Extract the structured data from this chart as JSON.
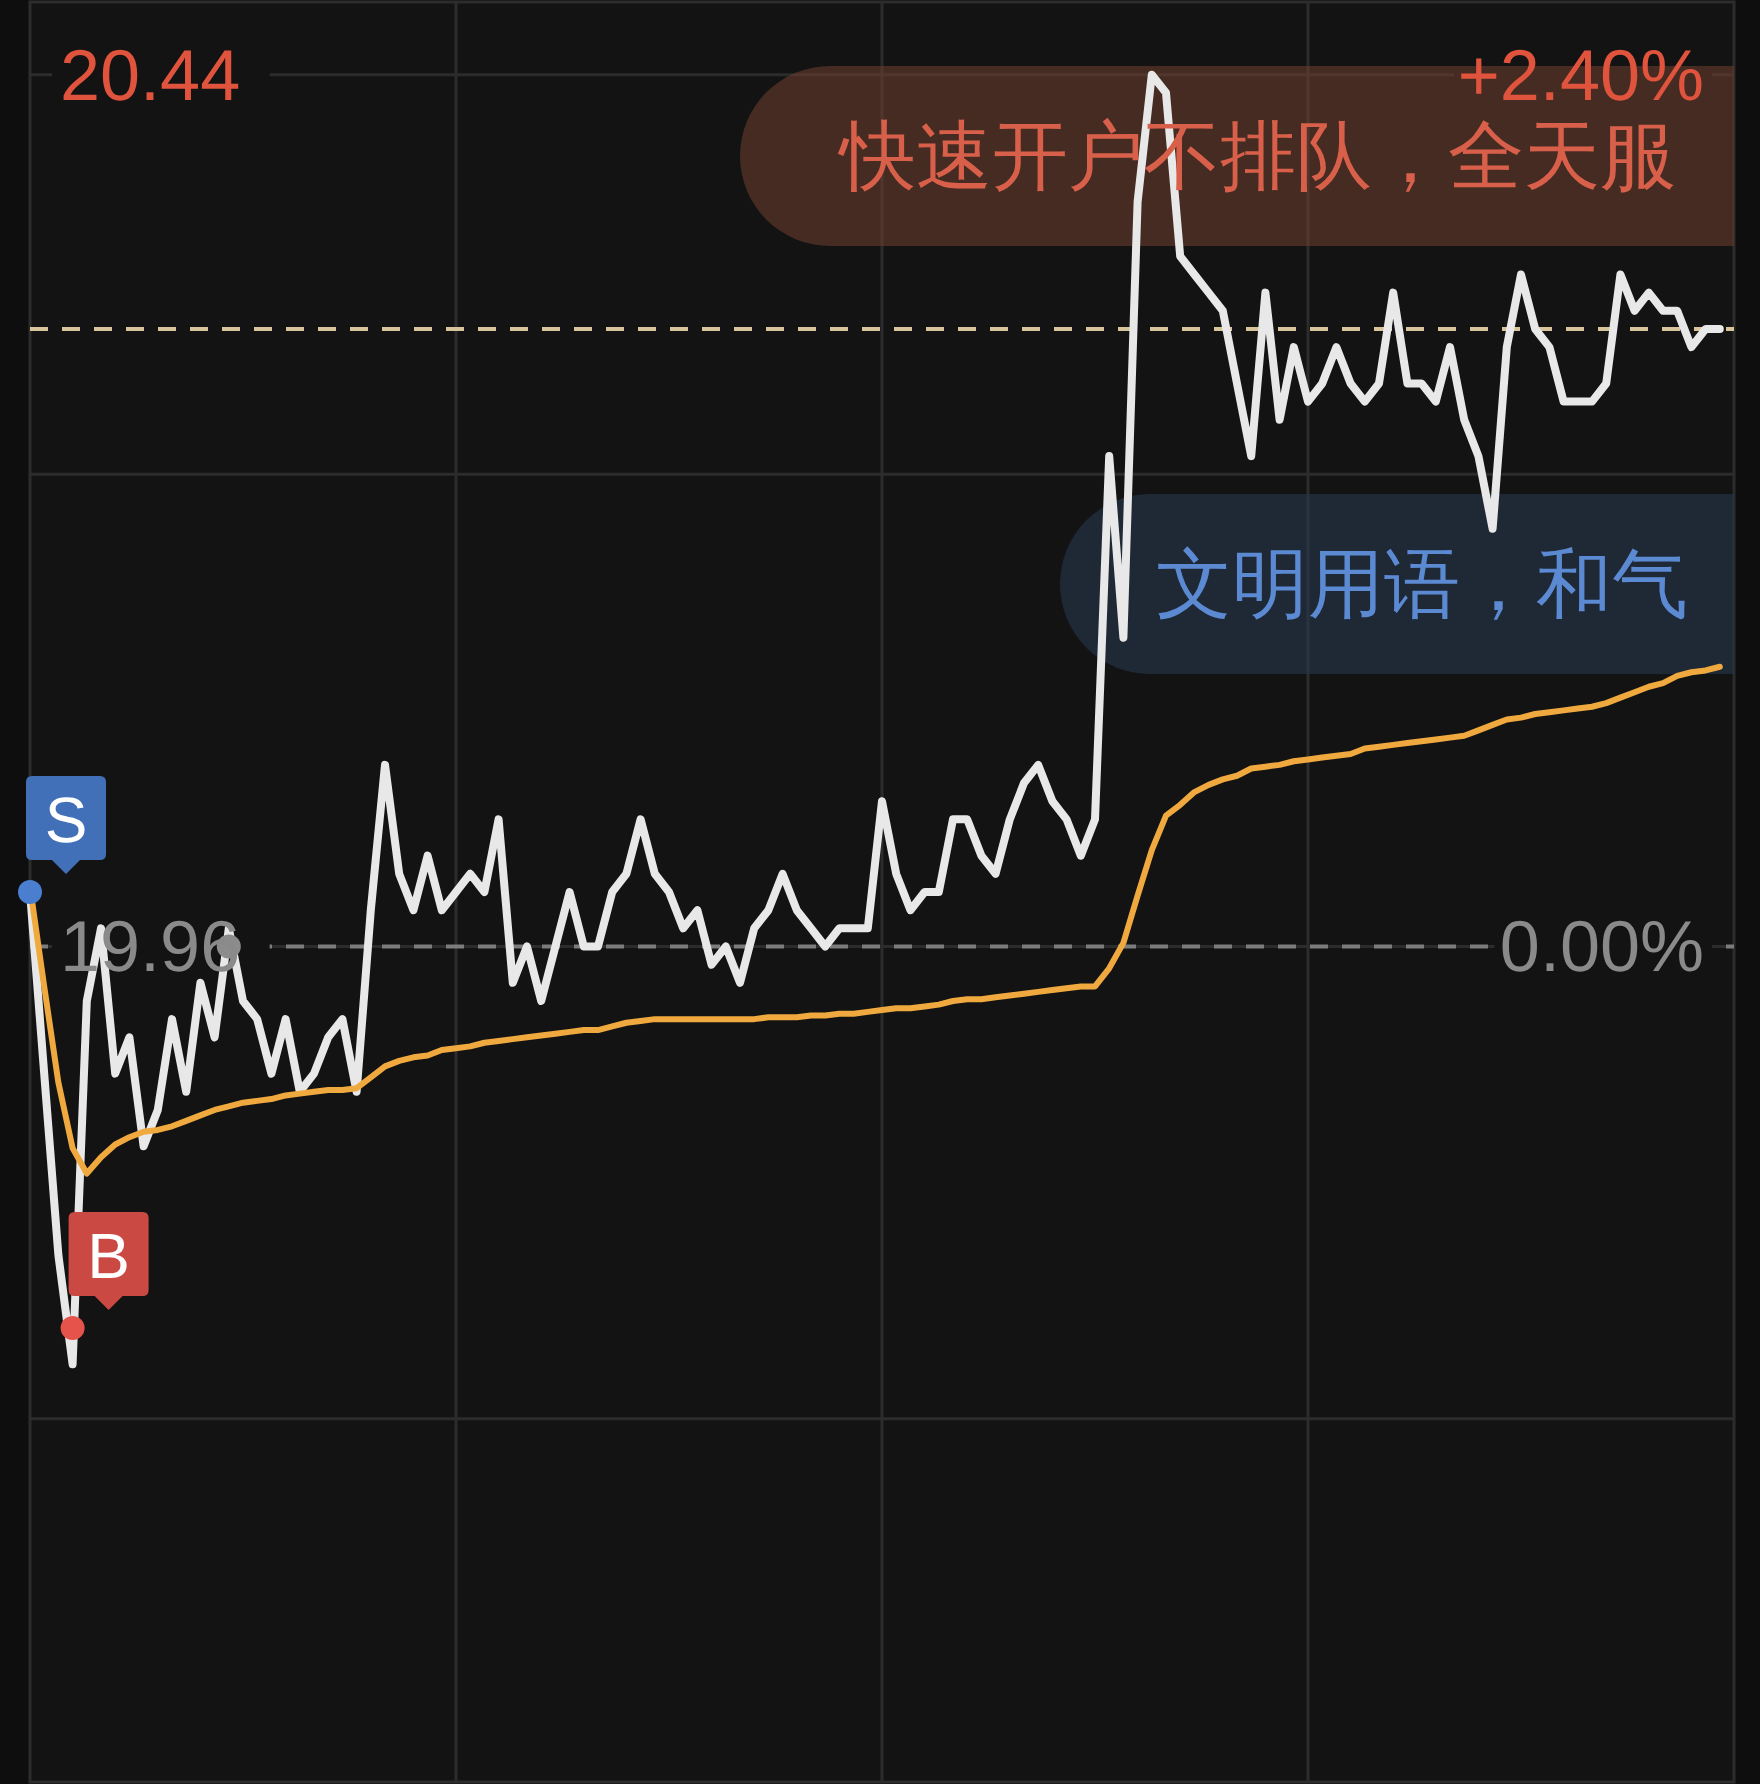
{
  "chart_data": {
    "type": "line",
    "categories": [
      null,
      null,
      null,
      null,
      null,
      null,
      null,
      null,
      null,
      null,
      null,
      null,
      null,
      null,
      null,
      null,
      null,
      null,
      null,
      null,
      null,
      null,
      null,
      null,
      null,
      null,
      null,
      null,
      null,
      null,
      null,
      null,
      null,
      null,
      null,
      null,
      null,
      null,
      null,
      null,
      null,
      null,
      null,
      null,
      null,
      null,
      null,
      null,
      null,
      null,
      null,
      null,
      null,
      null,
      null,
      null,
      null,
      null,
      null,
      null,
      null,
      null,
      null,
      null,
      null,
      null,
      null,
      null,
      null,
      null,
      null,
      null,
      null,
      null,
      null,
      null,
      null,
      null,
      null,
      null,
      null,
      null,
      null,
      null,
      null,
      null,
      null,
      null,
      null,
      null,
      null,
      null,
      null,
      null,
      null,
      null,
      null,
      null,
      null,
      null,
      null,
      null,
      null,
      null,
      null,
      null,
      null,
      null,
      null,
      null,
      null,
      null,
      null,
      null,
      null,
      null,
      null,
      null,
      null,
      null
    ],
    "ylim": [
      19.5,
      20.48
    ],
    "yticks": [
      20.44,
      {
        "value": 20.22,
        "label": null
      },
      19.96,
      {
        "value": 19.7,
        "label": null
      }
    ],
    "y2lim": [
      -2.3,
      2.6
    ],
    "y2ticks": [
      {
        "value": 2.4,
        "label": "+2.40%"
      },
      {
        "value": 0,
        "label": "0.00%"
      }
    ],
    "grid": true,
    "ref_lines": [
      {
        "axis": "y",
        "value": 19.96,
        "color": "#7c7c7c",
        "line_style": "dashed"
      },
      {
        "axis": "y",
        "value": 20.3,
        "color": "#d8c49a",
        "line_style": "dashed"
      }
    ],
    "series": [
      {
        "color": "#e8e8e8",
        "values": [
          19.99,
          19.89,
          19.79,
          19.73,
          19.93,
          19.97,
          19.89,
          19.91,
          19.85,
          19.87,
          19.92,
          19.88,
          19.94,
          19.91,
          19.97,
          19.93,
          19.92,
          19.89,
          19.92,
          19.88,
          19.89,
          19.91,
          19.92,
          19.88,
          19.98,
          20.06,
          20.0,
          19.98,
          20.01,
          19.98,
          19.99,
          20.0,
          19.99,
          20.03,
          19.94,
          19.96,
          19.93,
          19.96,
          19.99,
          19.96,
          19.96,
          19.99,
          20.0,
          20.03,
          20.0,
          19.99,
          19.97,
          19.98,
          19.95,
          19.96,
          19.94,
          19.97,
          19.98,
          20.0,
          19.98,
          19.97,
          19.96,
          19.97,
          19.97,
          19.97,
          20.04,
          20.0,
          19.98,
          19.99,
          19.99,
          20.03,
          20.03,
          20.01,
          20.0,
          20.03,
          20.05,
          20.06,
          20.04,
          20.03,
          20.01,
          20.03,
          20.23,
          20.13,
          20.37,
          20.44,
          20.43,
          20.34,
          20.33,
          20.32,
          20.31,
          20.27,
          20.23,
          20.32,
          20.25,
          20.29,
          20.26,
          20.27,
          20.29,
          20.27,
          20.26,
          20.27,
          20.32,
          20.27,
          20.27,
          20.26,
          20.29,
          20.25,
          20.23,
          20.19,
          20.29,
          20.33,
          20.3,
          20.29,
          20.26,
          20.26,
          20.26,
          20.27,
          20.33,
          20.31,
          20.32,
          20.31,
          20.31,
          20.29,
          20.3,
          20.3
        ]
      },
      {
        "color": "#f0a93e",
        "values": [
          19.993,
          19.938,
          19.885,
          19.849,
          19.835,
          19.844,
          19.851,
          19.855,
          19.858,
          19.859,
          19.861,
          19.864,
          19.867,
          19.87,
          19.872,
          19.874,
          19.875,
          19.876,
          19.878,
          19.879,
          19.88,
          19.881,
          19.881,
          19.882,
          19.888,
          19.894,
          19.897,
          19.899,
          19.9,
          19.903,
          19.904,
          19.905,
          19.907,
          19.908,
          19.909,
          19.91,
          19.911,
          19.912,
          19.913,
          19.914,
          19.914,
          19.916,
          19.918,
          19.919,
          19.92,
          19.92,
          19.92,
          19.92,
          19.92,
          19.92,
          19.92,
          19.92,
          19.921,
          19.921,
          19.921,
          19.922,
          19.922,
          19.923,
          19.923,
          19.924,
          19.925,
          19.926,
          19.926,
          19.927,
          19.928,
          19.93,
          19.931,
          19.931,
          19.932,
          19.933,
          19.934,
          19.935,
          19.936,
          19.937,
          19.938,
          19.938,
          19.948,
          19.962,
          19.988,
          20.013,
          20.032,
          20.038,
          20.045,
          20.049,
          20.052,
          20.054,
          20.058,
          20.059,
          20.06,
          20.062,
          20.063,
          20.064,
          20.065,
          20.066,
          20.069,
          20.07,
          20.071,
          20.072,
          20.073,
          20.074,
          20.075,
          20.076,
          20.079,
          20.082,
          20.085,
          20.086,
          20.088,
          20.089,
          20.09,
          20.091,
          20.092,
          20.094,
          20.097,
          20.1,
          20.103,
          20.105,
          20.109,
          20.111,
          20.112,
          20.114
        ]
      },
      {
        "type": "scatter",
        "color": "#4a7fd0",
        "values": [
          19.99,
          null,
          null,
          null,
          null,
          null,
          null,
          null,
          null,
          null,
          null,
          null,
          null,
          null,
          null,
          null,
          null,
          null,
          null,
          null,
          null,
          null,
          null,
          null,
          null,
          null,
          null,
          null,
          null,
          null,
          null,
          null,
          null,
          null,
          null,
          null,
          null,
          null,
          null,
          null,
          null,
          null,
          null,
          null,
          null,
          null,
          null,
          null,
          null,
          null,
          null,
          null,
          null,
          null,
          null,
          null,
          null,
          null,
          null,
          null,
          null,
          null,
          null,
          null,
          null,
          null,
          null,
          null,
          null,
          null,
          null,
          null,
          null,
          null,
          null,
          null,
          null,
          null,
          null,
          null,
          null,
          null,
          null,
          null,
          null,
          null,
          null,
          null,
          null,
          null,
          null,
          null,
          null,
          null,
          null,
          null,
          null,
          null,
          null,
          null,
          null,
          null,
          null,
          null,
          null,
          null,
          null,
          null,
          null,
          null,
          null,
          null,
          null,
          null,
          null,
          null,
          null,
          null,
          null,
          null
        ]
      },
      {
        "type": "scatter",
        "color": "#e5534b",
        "values": [
          null,
          null,
          null,
          19.75,
          null,
          null,
          null,
          null,
          null,
          null,
          null,
          null,
          null,
          null,
          null,
          null,
          null,
          null,
          null,
          null,
          null,
          null,
          null,
          null,
          null,
          null,
          null,
          null,
          null,
          null,
          null,
          null,
          null,
          null,
          null,
          null,
          null,
          null,
          null,
          null,
          null,
          null,
          null,
          null,
          null,
          null,
          null,
          null,
          null,
          null,
          null,
          null,
          null,
          null,
          null,
          null,
          null,
          null,
          null,
          null,
          null,
          null,
          null,
          null,
          null,
          null,
          null,
          null,
          null,
          null,
          null,
          null,
          null,
          null,
          null,
          null,
          null,
          null,
          null,
          null,
          null,
          null,
          null,
          null,
          null,
          null,
          null,
          null,
          null,
          null,
          null,
          null,
          null,
          null,
          null,
          null,
          null,
          null,
          null,
          null,
          null,
          null,
          null,
          null,
          null,
          null,
          null,
          null,
          null,
          null,
          null,
          null,
          null,
          null,
          null,
          null,
          null,
          null,
          null,
          null
        ]
      },
      {
        "type": "scatter",
        "color": "#8c8c8c",
        "values": [
          null,
          null,
          null,
          null,
          null,
          null,
          null,
          null,
          null,
          null,
          null,
          null,
          null,
          null,
          19.96,
          null,
          null,
          null,
          null,
          null,
          null,
          null,
          null,
          null,
          null,
          null,
          null,
          null,
          null,
          null,
          null,
          null,
          null,
          null,
          null,
          null,
          null,
          null,
          null,
          null,
          null,
          null,
          null,
          null,
          null,
          null,
          null,
          null,
          null,
          null,
          null,
          null,
          null,
          null,
          null,
          null,
          null,
          null,
          null,
          null,
          null,
          null,
          null,
          null,
          null,
          null,
          null,
          null,
          null,
          null,
          null,
          null,
          null,
          null,
          null,
          null,
          null,
          null,
          null,
          null,
          null,
          null,
          null,
          null,
          null,
          null,
          null,
          null,
          null,
          null,
          null,
          null,
          null,
          null,
          null,
          null,
          null,
          null,
          null,
          null,
          null,
          null,
          null,
          null,
          null,
          null,
          null,
          null,
          null,
          null,
          null,
          null,
          null,
          null,
          null,
          null,
          null,
          null,
          null,
          null
        ]
      }
    ],
    "annotations": [
      "快速开户不排队，全天服",
      "文明用语，和气",
      "S",
      "B"
    ]
  }
}
